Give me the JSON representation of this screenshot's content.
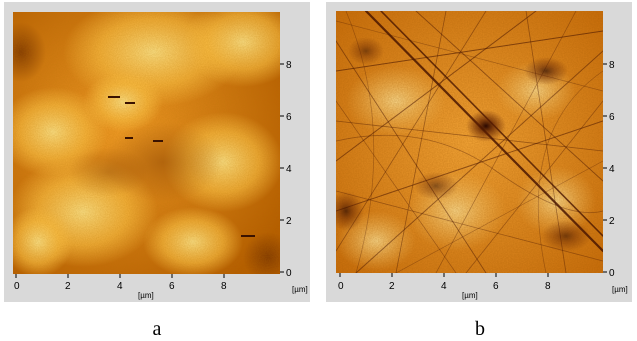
{
  "panels": [
    {
      "id": "a",
      "caption": "a",
      "x_ticks": [
        "0",
        "2",
        "4",
        "6",
        "8"
      ],
      "y_ticks": [
        "0",
        "2",
        "4",
        "6",
        "8"
      ],
      "x_unit": "[µm]",
      "y_unit": "[µm]",
      "colors": {
        "dark": "#5a2400",
        "mid": "#c96a00",
        "light": "#ffd36a",
        "bright": "#fff1a8"
      }
    },
    {
      "id": "b",
      "caption": "b",
      "x_ticks": [
        "0",
        "2",
        "4",
        "6",
        "8"
      ],
      "y_ticks": [
        "0",
        "2",
        "4",
        "6",
        "8"
      ],
      "x_unit": "[µm]",
      "y_unit": "[µm]",
      "colors": {
        "dark": "#3a1000",
        "mid": "#b35800",
        "light": "#ffc14a",
        "bright": "#ffe69a"
      }
    }
  ]
}
